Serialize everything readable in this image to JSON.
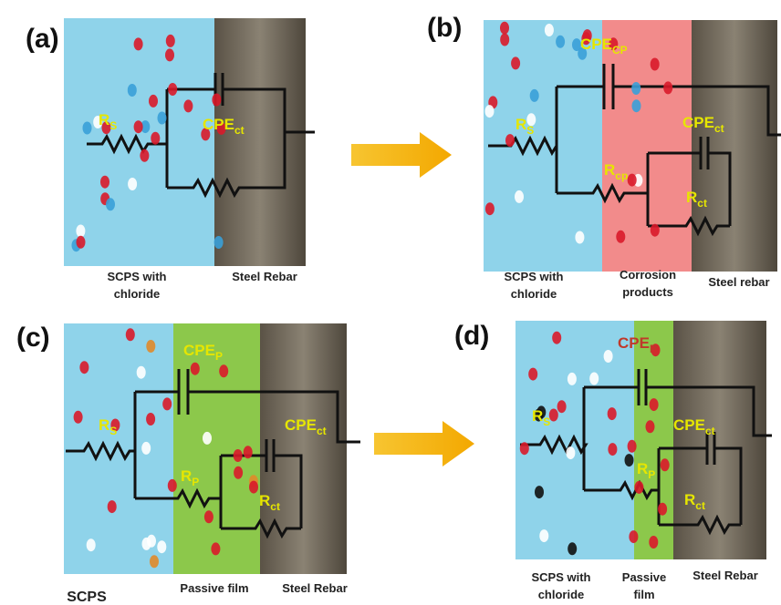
{
  "panels": [
    {
      "label": "(a)",
      "components": [
        {
          "base": "R",
          "sub": "S"
        },
        {
          "base": "CPE",
          "sub": "ct"
        }
      ],
      "regions": [
        [
          "SCPS with",
          "chloride"
        ],
        [
          "Steel Rebar"
        ]
      ]
    },
    {
      "label": "(b)",
      "components": [
        {
          "base": "CPE",
          "sub": "CP"
        },
        {
          "base": "R",
          "sub": "S"
        },
        {
          "base": "CPE",
          "sub": "ct"
        },
        {
          "base": "R",
          "sub": "cp"
        },
        {
          "base": "R",
          "sub": "ct"
        }
      ],
      "regions": [
        [
          "SCPS with",
          "chloride"
        ],
        [
          "Corrosion",
          "products"
        ],
        [
          "Steel rebar"
        ]
      ]
    },
    {
      "label": "(c)",
      "components": [
        {
          "base": "CPE",
          "sub": "P"
        },
        {
          "base": "R",
          "sub": "S"
        },
        {
          "base": "CPE",
          "sub": "ct"
        },
        {
          "base": "R",
          "sub": "P"
        },
        {
          "base": "R",
          "sub": "ct"
        }
      ],
      "regions": [
        [
          "SCPS"
        ],
        [
          "Passive film"
        ],
        [
          "Steel Rebar"
        ]
      ]
    },
    {
      "label": "(d)",
      "components": [
        {
          "base": "CPE",
          "sub": "P"
        },
        {
          "base": "R",
          "sub": "S"
        },
        {
          "base": "CPE",
          "sub": "ct"
        },
        {
          "base": "R",
          "sub": "P"
        },
        {
          "base": "R",
          "sub": "ct"
        }
      ],
      "regions": [
        [
          "SCPS with",
          "chloride"
        ],
        [
          "Passive",
          "film"
        ],
        [
          "Steel Rebar"
        ]
      ]
    }
  ]
}
